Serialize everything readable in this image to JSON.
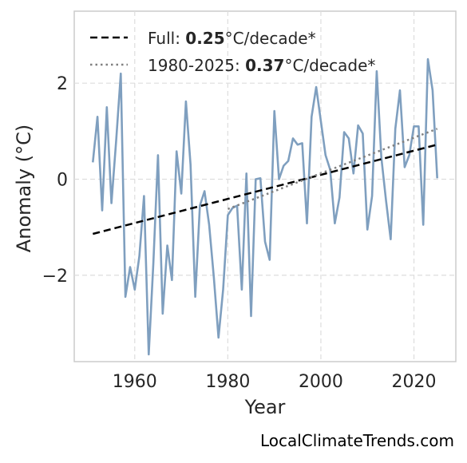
{
  "chart_data": {
    "type": "line",
    "xlabel": "Year",
    "ylabel": "Anomaly (°C)",
    "xlim": [
      1947,
      2029
    ],
    "ylim": [
      -3.8,
      3.5
    ],
    "xticks": [
      1960,
      1980,
      2000,
      2020
    ],
    "yticks": [
      -2,
      0,
      2
    ],
    "yticklabels": [
      "−2",
      "0",
      "2"
    ],
    "grid": true,
    "legend_position": "top-left",
    "series": [
      {
        "color": "#7f9fbf",
        "x": [
          1951,
          1952,
          1953,
          1954,
          1955,
          1956,
          1957,
          1958,
          1959,
          1960,
          1961,
          1962,
          1963,
          1964,
          1965,
          1966,
          1967,
          1968,
          1969,
          1970,
          1971,
          1972,
          1973,
          1974,
          1975,
          1976,
          1977,
          1978,
          1979,
          1980,
          1981,
          1982,
          1983,
          1984,
          1985,
          1986,
          1987,
          1988,
          1989,
          1990,
          1991,
          1992,
          1993,
          1994,
          1995,
          1996,
          1997,
          1998,
          1999,
          2000,
          2001,
          2002,
          2003,
          2004,
          2005,
          2006,
          2007,
          2008,
          2009,
          2010,
          2011,
          2012,
          2013,
          2014,
          2015,
          2016,
          2017,
          2018,
          2019,
          2020,
          2021,
          2022,
          2023,
          2024,
          2025
        ],
        "y": [
          0.35,
          1.3,
          -0.65,
          1.5,
          -0.5,
          0.8,
          2.2,
          -2.45,
          -1.83,
          -2.3,
          -1.6,
          -0.35,
          -3.65,
          -1.75,
          0.5,
          -2.8,
          -1.38,
          -2.1,
          0.58,
          -0.3,
          1.62,
          0.3,
          -2.45,
          -0.55,
          -0.25,
          -0.95,
          -2.05,
          -3.3,
          -2.3,
          -0.75,
          -0.6,
          -0.55,
          -2.3,
          0.12,
          -2.85,
          0.0,
          0.02,
          -1.3,
          -1.68,
          1.42,
          0.0,
          0.28,
          0.38,
          0.85,
          0.72,
          0.75,
          -0.92,
          1.3,
          1.92,
          1.2,
          0.5,
          0.2,
          -0.92,
          -0.38,
          0.98,
          0.85,
          0.12,
          1.12,
          0.95,
          -1.05,
          -0.35,
          2.25,
          0.45,
          -0.45,
          -1.25,
          1.05,
          1.85,
          0.25,
          0.5,
          1.1,
          1.1,
          -0.95,
          2.5,
          1.85,
          0.02
        ]
      },
      {
        "label_prefix": "Full: ",
        "label_value": "0.25",
        "label_suffix": "°C/decade*",
        "color": "#000000",
        "style": "dashed",
        "x": [
          1951,
          2025
        ],
        "y": [
          -1.14,
          0.72
        ]
      },
      {
        "label_prefix": "1980-2025: ",
        "label_value": "0.37",
        "label_suffix": "°C/decade*",
        "color": "#808080",
        "style": "dotted",
        "x": [
          1980,
          2025
        ],
        "y": [
          -0.62,
          1.05
        ]
      }
    ]
  },
  "source_text": "LocalClimateTrends.com"
}
